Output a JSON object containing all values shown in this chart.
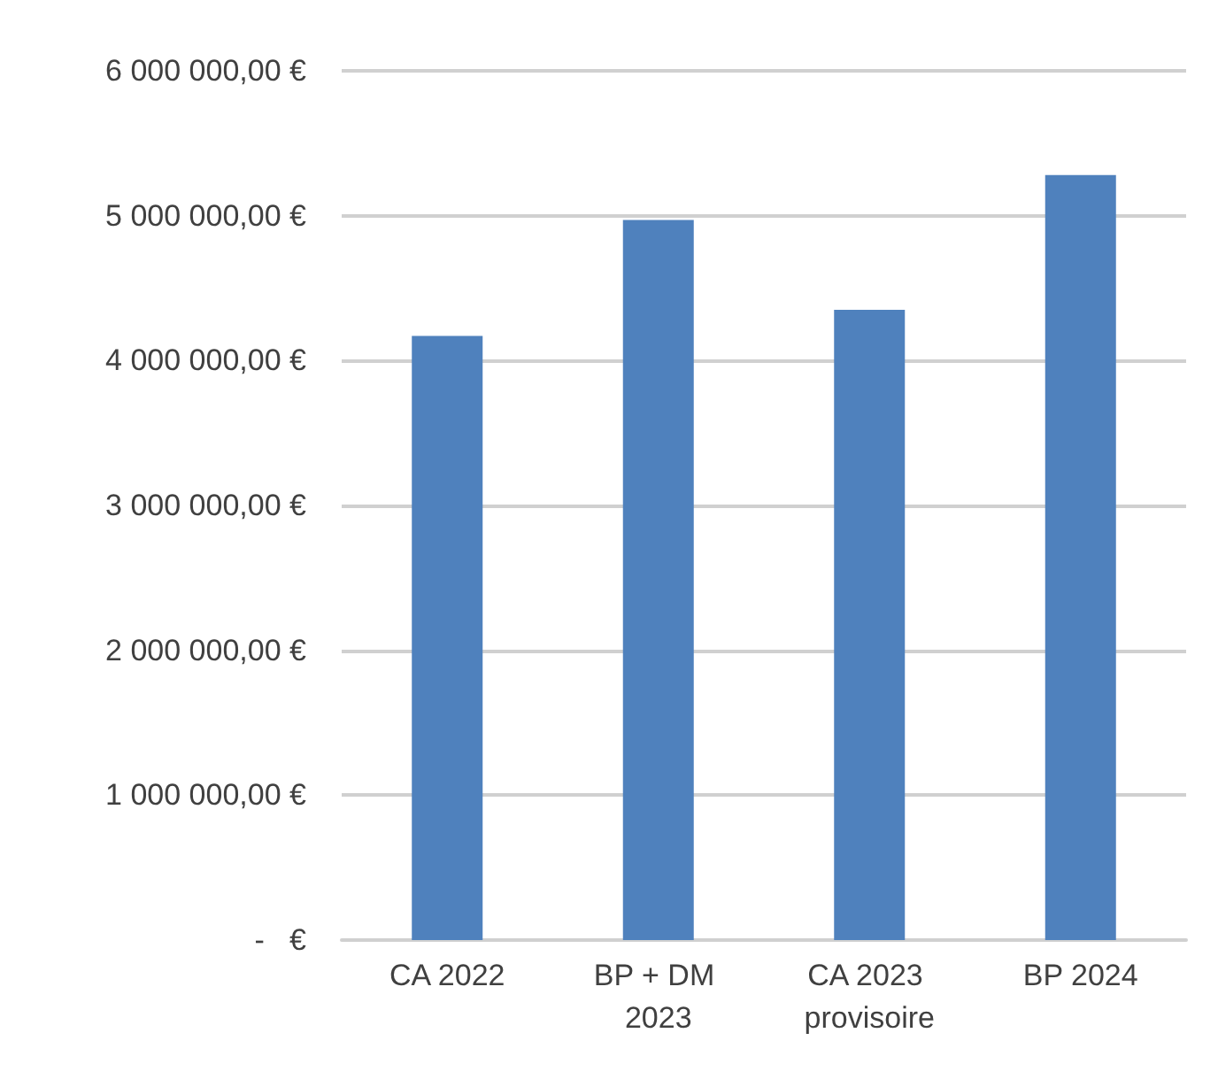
{
  "chart_data": {
    "type": "bar",
    "categories": [
      "CA 2022",
      "BP + DM 2023",
      "CA 2023 provisoire",
      "BP 2024"
    ],
    "values": [
      4170000,
      4970000,
      4350000,
      5280000
    ],
    "color": "#4f81bd",
    "ylim": [
      0,
      6000000
    ],
    "yticks": [
      {
        "value": 0,
        "label": "-   €"
      },
      {
        "value": 1000000,
        "label": "1 000 000,00 €"
      },
      {
        "value": 2000000,
        "label": "2 000 000,00 €"
      },
      {
        "value": 3000000,
        "label": "3 000 000,00 €"
      },
      {
        "value": 4000000,
        "label": "4 000 000,00 €"
      },
      {
        "value": 5000000,
        "label": "5 000 000,00 €"
      },
      {
        "value": 6000000,
        "label": "6 000 000,00 €"
      }
    ],
    "grid": "y"
  }
}
